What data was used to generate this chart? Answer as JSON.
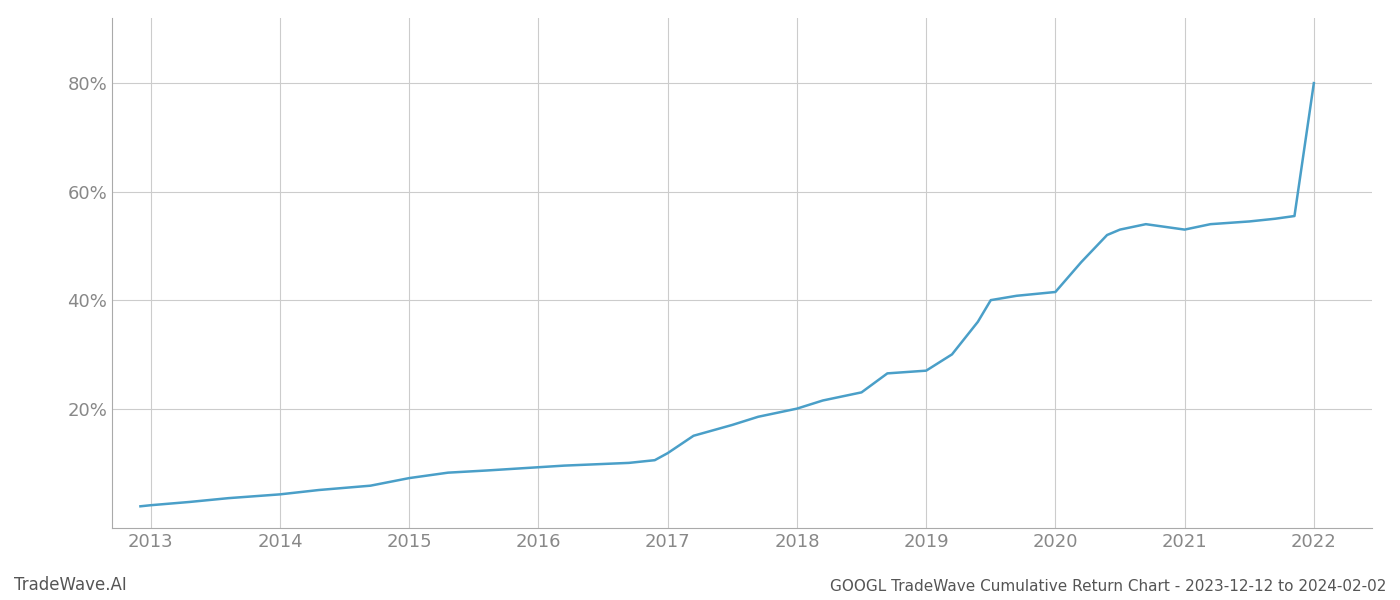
{
  "title": "GOOGL TradeWave Cumulative Return Chart - 2023-12-12 to 2024-02-02",
  "watermark": "TradeWave.AI",
  "line_color": "#4a9fc8",
  "background_color": "#ffffff",
  "grid_color": "#cccccc",
  "x_years": [
    2013,
    2014,
    2015,
    2016,
    2017,
    2018,
    2019,
    2020,
    2021,
    2022
  ],
  "y_ticks": [
    0.2,
    0.4,
    0.6,
    0.8
  ],
  "xy_data": [
    [
      2012.92,
      0.02
    ],
    [
      2013.0,
      0.022
    ],
    [
      2013.3,
      0.028
    ],
    [
      2013.6,
      0.035
    ],
    [
      2014.0,
      0.042
    ],
    [
      2014.3,
      0.05
    ],
    [
      2014.7,
      0.058
    ],
    [
      2015.0,
      0.072
    ],
    [
      2015.3,
      0.082
    ],
    [
      2015.6,
      0.086
    ],
    [
      2016.0,
      0.092
    ],
    [
      2016.2,
      0.095
    ],
    [
      2016.5,
      0.098
    ],
    [
      2016.7,
      0.1
    ],
    [
      2016.9,
      0.105
    ],
    [
      2017.0,
      0.118
    ],
    [
      2017.2,
      0.15
    ],
    [
      2017.5,
      0.17
    ],
    [
      2017.7,
      0.185
    ],
    [
      2018.0,
      0.2
    ],
    [
      2018.2,
      0.215
    ],
    [
      2018.5,
      0.23
    ],
    [
      2018.7,
      0.265
    ],
    [
      2019.0,
      0.27
    ],
    [
      2019.2,
      0.3
    ],
    [
      2019.4,
      0.36
    ],
    [
      2019.5,
      0.4
    ],
    [
      2019.7,
      0.408
    ],
    [
      2020.0,
      0.415
    ],
    [
      2020.2,
      0.47
    ],
    [
      2020.4,
      0.52
    ],
    [
      2020.5,
      0.53
    ],
    [
      2020.7,
      0.54
    ],
    [
      2021.0,
      0.53
    ],
    [
      2021.2,
      0.54
    ],
    [
      2021.5,
      0.545
    ],
    [
      2021.7,
      0.55
    ],
    [
      2021.85,
      0.555
    ],
    [
      2022.0,
      0.8
    ]
  ],
  "xlim": [
    2012.7,
    2022.45
  ],
  "ylim": [
    -0.02,
    0.92
  ],
  "title_fontsize": 11,
  "watermark_fontsize": 12,
  "tick_fontsize": 13,
  "axis_color": "#aaaaaa",
  "tick_color": "#888888"
}
